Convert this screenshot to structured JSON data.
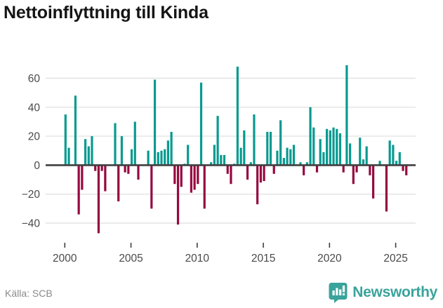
{
  "title": "Nettoinflyttning till Kinda",
  "footer": {
    "source_label": "Källa: SCB",
    "brand": "Newsworthy"
  },
  "colors": {
    "positive_bar": "#089a90",
    "negative_bar": "#96093f",
    "axis_line": "#3f3f3f",
    "gridline": "#e3e3e3",
    "tick_label": "#4a4a4a",
    "brand_teal": "#3aa39b"
  },
  "chart_data": {
    "type": "bar",
    "title": "Nettoinflyttning till Kinda",
    "frequency": "quarterly",
    "start_period": "2000-Q1",
    "end_period": "2025-Q4",
    "x_tick_labels": [
      "2000",
      "2005",
      "2010",
      "2015",
      "2020",
      "2025"
    ],
    "y_ticks": [
      60,
      40,
      20,
      0,
      -20,
      -40
    ],
    "ylim": [
      -50,
      72
    ],
    "grid": true,
    "legend": "none",
    "series": [
      {
        "name": "Nettoinflyttning",
        "values": [
          35,
          12,
          0,
          48,
          -34,
          -17,
          18,
          13,
          20,
          -4,
          -47,
          -4,
          -18,
          0,
          0,
          29,
          -25,
          20,
          -5,
          -6,
          11,
          30,
          -10,
          0,
          0,
          10,
          -30,
          59,
          9,
          10,
          11,
          17,
          23,
          -13,
          -41,
          -15,
          1,
          14,
          -19,
          -17,
          -13,
          57,
          -30,
          0,
          2,
          14,
          34,
          7,
          7,
          -6,
          -13,
          1,
          68,
          12,
          24,
          -10,
          2,
          35,
          -27,
          -12,
          -11,
          23,
          23,
          -6,
          10,
          31,
          5,
          12,
          11,
          14,
          0,
          2,
          -7,
          2,
          40,
          26,
          -5,
          18,
          9,
          25,
          24,
          26,
          25,
          22,
          -5,
          69,
          15,
          -13,
          -5,
          19,
          4,
          13,
          -7,
          -23,
          0,
          3,
          0,
          -32,
          17,
          14,
          3,
          9,
          -4,
          -7
        ]
      }
    ]
  }
}
